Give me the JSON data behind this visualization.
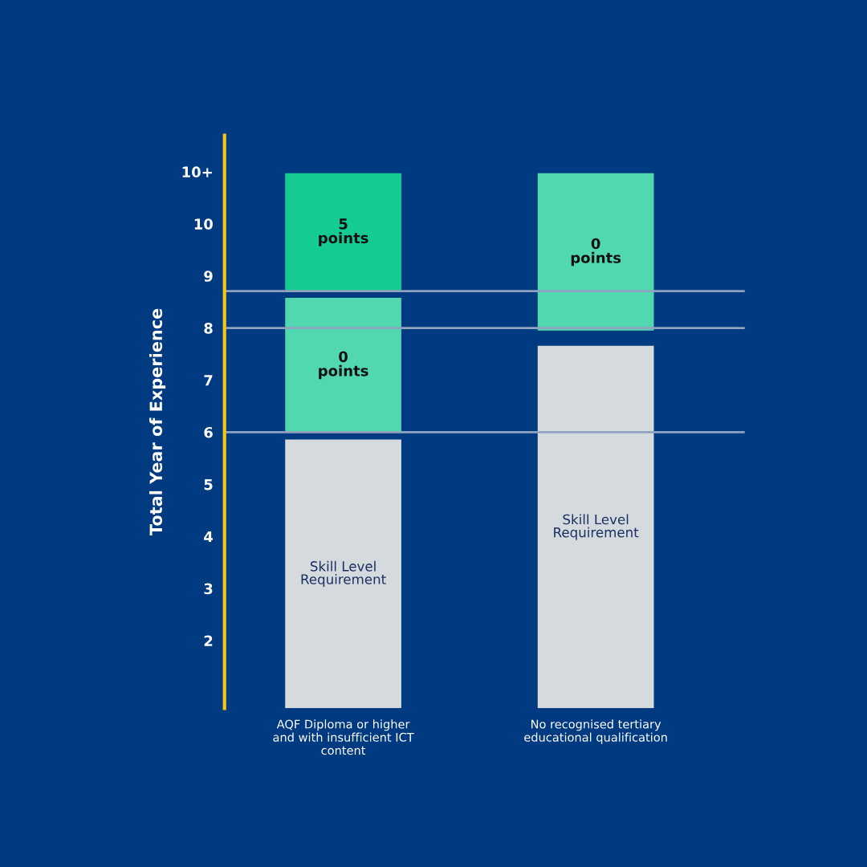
{
  "chart_data": {
    "type": "bar",
    "ylabel": "Total Year of Experience",
    "categories": [
      "AQF Diploma or higher\nand with insufficient ICT\ncontent",
      "No recognised tertiary\neducational qualification"
    ],
    "series": [
      {
        "color": "#d5dade",
        "base": [
          0.7,
          0.7
        ],
        "values": [
          5.16,
          6.96
        ]
      },
      {
        "color": "#52d8b0",
        "base": [
          6.0,
          7.95
        ],
        "values": [
          2.58,
          3.02
        ]
      },
      {
        "color": "#14cb93",
        "base": [
          8.71,
          null
        ],
        "values": [
          2.26,
          null
        ]
      }
    ],
    "annotations": [
      "Skill Level\nRequirement",
      "Skill Level\nRequirement",
      "0\npoints",
      "0\npoints",
      "5\npoints"
    ],
    "ylim": [
      0.7,
      11.7
    ],
    "yticks": [
      2,
      3,
      4,
      5,
      6,
      7,
      8,
      9,
      10,
      {
        "value": 11,
        "label": "10+"
      }
    ],
    "ref_lines": [
      {
        "axis": "y",
        "value": 6.0,
        "color": "#8fa3bf"
      },
      {
        "axis": "y",
        "value": 8.71,
        "color": "#8fa3bf"
      },
      {
        "axis": "y",
        "value": 8.0,
        "color": "#8fa3bf"
      }
    ],
    "legend": false,
    "grid": false
  }
}
